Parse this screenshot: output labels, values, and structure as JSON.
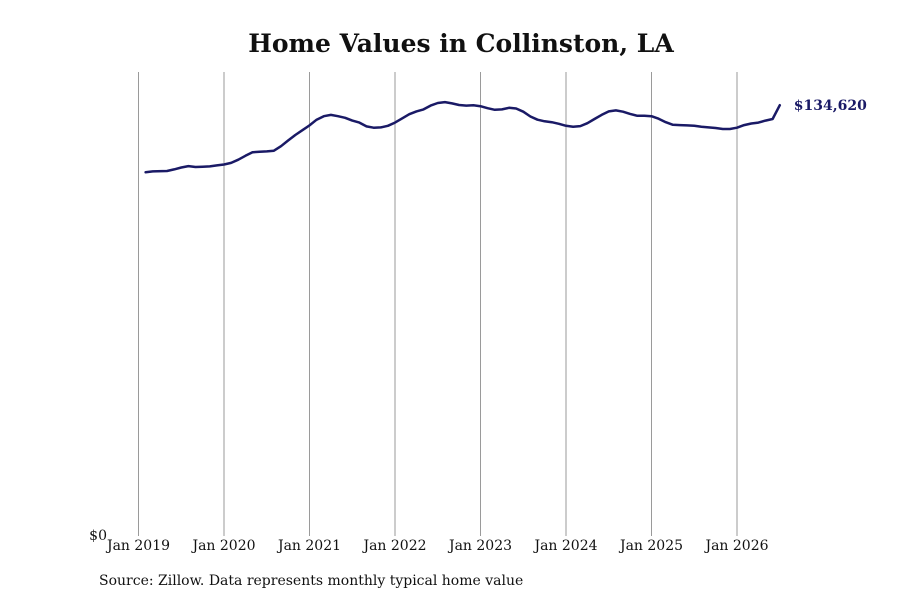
{
  "chart_data": {
    "type": "line",
    "title": "Home Values in Collinston, LA",
    "xlabel": "",
    "ylabel": "",
    "y_tick_labels": [
      "$0"
    ],
    "x_tick_labels": [
      "Jan 2019",
      "Jan 2020",
      "Jan 2021",
      "Jan 2022",
      "Jan 2023",
      "Jan 2024",
      "Jan 2025",
      "Jan 2026"
    ],
    "ylim": [
      0,
      145000
    ],
    "grid": "vertical",
    "line_color": "#1a1a66",
    "end_label": "$134,620",
    "series": [
      {
        "points": [
          [
            "2019-02",
            113700
          ],
          [
            "2019-03",
            113950
          ],
          [
            "2019-05",
            114050
          ],
          [
            "2019-06",
            114550
          ],
          [
            "2019-07",
            115150
          ],
          [
            "2019-08",
            115600
          ],
          [
            "2019-09",
            115300
          ],
          [
            "2019-10",
            115400
          ],
          [
            "2019-11",
            115500
          ],
          [
            "2019-12",
            115800
          ],
          [
            "2020-01",
            116100
          ],
          [
            "2020-02",
            116600
          ],
          [
            "2020-03",
            117600
          ],
          [
            "2020-04",
            118800
          ],
          [
            "2020-05",
            119900
          ],
          [
            "2020-06",
            120100
          ],
          [
            "2020-07",
            120200
          ],
          [
            "2020-08",
            120400
          ],
          [
            "2020-09",
            121800
          ],
          [
            "2020-10",
            123600
          ],
          [
            "2020-11",
            125300
          ],
          [
            "2020-12",
            126800
          ],
          [
            "2021-01",
            128300
          ],
          [
            "2021-02",
            130100
          ],
          [
            "2021-03",
            131200
          ],
          [
            "2021-04",
            131600
          ],
          [
            "2021-05",
            131200
          ],
          [
            "2021-06",
            130700
          ],
          [
            "2021-07",
            129800
          ],
          [
            "2021-08",
            129200
          ],
          [
            "2021-09",
            128000
          ],
          [
            "2021-10",
            127600
          ],
          [
            "2021-11",
            127700
          ],
          [
            "2021-12",
            128200
          ],
          [
            "2022-01",
            129200
          ],
          [
            "2022-02",
            130500
          ],
          [
            "2022-03",
            131800
          ],
          [
            "2022-04",
            132700
          ],
          [
            "2022-05",
            133300
          ],
          [
            "2022-06",
            134500
          ],
          [
            "2022-07",
            135300
          ],
          [
            "2022-08",
            135600
          ],
          [
            "2022-09",
            135200
          ],
          [
            "2022-10",
            134700
          ],
          [
            "2022-11",
            134500
          ],
          [
            "2022-12",
            134600
          ],
          [
            "2023-01",
            134300
          ],
          [
            "2023-02",
            133700
          ],
          [
            "2023-03",
            133200
          ],
          [
            "2023-04",
            133300
          ],
          [
            "2023-05",
            133800
          ],
          [
            "2023-06",
            133600
          ],
          [
            "2023-07",
            132600
          ],
          [
            "2023-08",
            131100
          ],
          [
            "2023-09",
            130100
          ],
          [
            "2023-10",
            129600
          ],
          [
            "2023-11",
            129300
          ],
          [
            "2023-12",
            128800
          ],
          [
            "2024-01",
            128200
          ],
          [
            "2024-02",
            127900
          ],
          [
            "2024-03",
            128100
          ],
          [
            "2024-04",
            129000
          ],
          [
            "2024-05",
            130300
          ],
          [
            "2024-06",
            131600
          ],
          [
            "2024-07",
            132700
          ],
          [
            "2024-08",
            133000
          ],
          [
            "2024-09",
            132600
          ],
          [
            "2024-10",
            131900
          ],
          [
            "2024-11",
            131300
          ],
          [
            "2024-12",
            131300
          ],
          [
            "2025-01",
            131200
          ],
          [
            "2025-02",
            130400
          ],
          [
            "2025-03",
            129300
          ],
          [
            "2025-04",
            128500
          ],
          [
            "2025-05",
            128400
          ],
          [
            "2025-06",
            128300
          ],
          [
            "2025-07",
            128200
          ],
          [
            "2025-08",
            127900
          ],
          [
            "2025-09",
            127700
          ],
          [
            "2025-10",
            127500
          ],
          [
            "2025-11",
            127200
          ],
          [
            "2025-12",
            127200
          ],
          [
            "2026-01",
            127600
          ],
          [
            "2026-02",
            128400
          ],
          [
            "2026-03",
            128900
          ],
          [
            "2026-04",
            129200
          ],
          [
            "2026-05",
            129800
          ],
          [
            "2026-06",
            130300
          ],
          [
            "2026-07",
            134620
          ]
        ]
      }
    ]
  },
  "footer": {
    "source": "Source: Zillow. Data represents monthly typical home value"
  }
}
